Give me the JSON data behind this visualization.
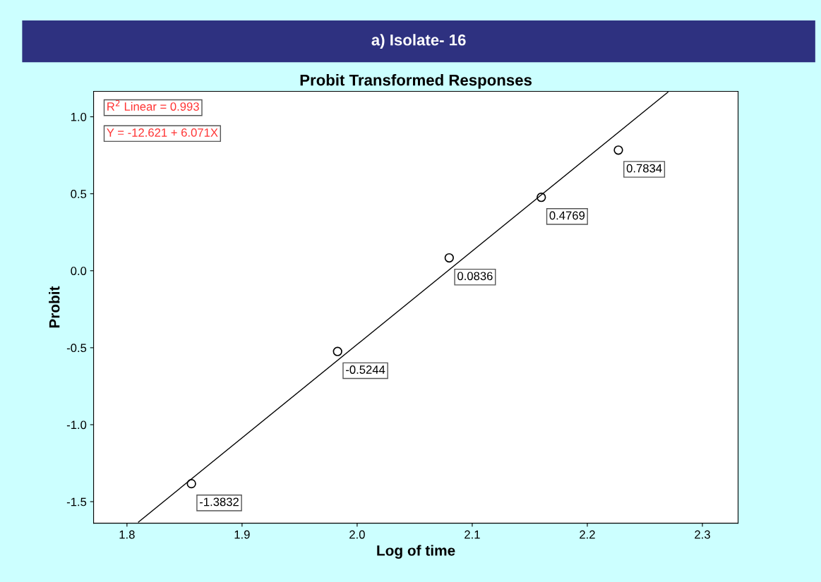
{
  "chart_data": {
    "type": "scatter",
    "title": "a) Isolate- 16",
    "subtitle": "Probit Transformed Responses",
    "xlabel": "Log of time",
    "ylabel": "Probit",
    "annotations": [
      "R$^{2}$ Linear = 0.993",
      "Y = -12.621 + 6.071X"
    ],
    "series": [
      {
        "color": "#000000",
        "marker": "circle",
        "x": [
          1.856,
          1.983,
          2.08,
          2.16,
          2.227
        ],
        "values": [
          -1.3832,
          -0.5244,
          0.0836,
          0.4769,
          0.7834
        ],
        "value_labels": [
          "-1.3832",
          "-0.5244",
          "0.0836",
          "0.4769",
          "0.7834"
        ]
      },
      {
        "type": "line",
        "color": "#000000",
        "line_style": "solid",
        "x": [
          1.81,
          2.27
        ],
        "values": [
          -1.632,
          1.16
        ]
      }
    ],
    "xlim": [
      1.771,
      2.331
    ],
    "ylim": [
      -1.64,
      1.165
    ],
    "xticks": [
      {
        "value": 1.8,
        "label": "1.8"
      },
      {
        "value": 1.9,
        "label": "1.9"
      },
      {
        "value": 2.0,
        "label": "2.0"
      },
      {
        "value": 2.1,
        "label": "2.1"
      },
      {
        "value": 2.2,
        "label": "2.2"
      },
      {
        "value": 2.3,
        "label": "2.3"
      }
    ],
    "yticks": [
      {
        "value": -1.5,
        "label": "-1.5"
      },
      {
        "value": -1.0,
        "label": "-1.0"
      },
      {
        "value": -0.5,
        "label": "-0.5"
      },
      {
        "value": 0.0,
        "label": "0.0"
      },
      {
        "value": 0.5,
        "label": "0.5"
      },
      {
        "value": 1.0,
        "label": "1.0"
      }
    ],
    "grid": false,
    "legend": false
  }
}
